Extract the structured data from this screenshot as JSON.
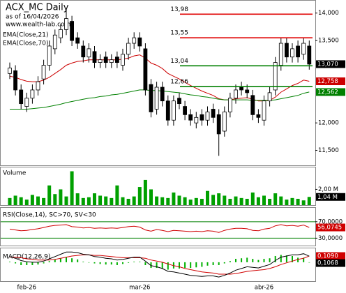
{
  "chart_data": [
    {
      "type": "candlestick",
      "title": "ACX_MC Daily",
      "subtitle": "as of 16/04/2026",
      "source": "www.wealth-lab.com",
      "categories": [
        null,
        null,
        null,
        "feb-26",
        null,
        null,
        null,
        null,
        null,
        null,
        null,
        null,
        null,
        null,
        null,
        null,
        null,
        null,
        null,
        null,
        null,
        null,
        null,
        "mar-26",
        null,
        null,
        null,
        null,
        null,
        null,
        null,
        null,
        null,
        null,
        null,
        null,
        null,
        null,
        null,
        null,
        null,
        null,
        null,
        null,
        null,
        "abr-26",
        null,
        null,
        null,
        null,
        null,
        null,
        null,
        null
      ],
      "open": [
        12.9,
        12.95,
        12.6,
        12.3,
        12.45,
        12.6,
        12.8,
        13.05,
        13.35,
        13.55,
        13.7,
        13.85,
        13.55,
        13.4,
        13.2,
        13.3,
        13.1,
        13.2,
        13.1,
        13.2,
        13.05,
        13.25,
        13.45,
        13.55,
        13.35,
        12.7,
        12.25,
        12.65,
        12.4,
        12.05,
        12.45,
        12.3,
        12.15,
        12.0,
        12.15,
        12.05,
        12.25,
        12.15,
        11.85,
        12.2,
        12.45,
        12.65,
        12.6,
        12.5,
        12.15,
        12.05,
        12.4,
        12.6,
        13.05,
        13.45,
        13.2,
        13.4,
        13.25,
        13.4
      ],
      "high": [
        13.1,
        13.05,
        12.7,
        12.55,
        12.7,
        12.85,
        13.15,
        13.5,
        13.7,
        13.8,
        14.08,
        13.95,
        13.65,
        13.5,
        13.45,
        13.4,
        13.25,
        13.3,
        13.25,
        13.3,
        13.35,
        13.55,
        13.65,
        13.65,
        13.45,
        12.8,
        12.75,
        12.75,
        12.5,
        12.5,
        12.55,
        12.4,
        12.25,
        12.2,
        12.25,
        12.3,
        12.35,
        12.25,
        12.3,
        12.55,
        12.7,
        12.75,
        12.7,
        12.6,
        12.25,
        12.5,
        12.65,
        13.2,
        13.55,
        13.55,
        13.45,
        13.5,
        13.55,
        13.5
      ],
      "low": [
        12.8,
        12.5,
        12.25,
        12.2,
        12.35,
        12.5,
        12.7,
        12.95,
        13.25,
        13.45,
        13.6,
        13.4,
        13.35,
        13.1,
        13.1,
        13.0,
        13.0,
        13.0,
        13.0,
        13.0,
        12.95,
        13.15,
        13.35,
        13.3,
        12.5,
        12.1,
        12.15,
        12.3,
        11.95,
        11.95,
        12.25,
        12.05,
        11.95,
        11.9,
        11.95,
        11.95,
        12.0,
        11.4,
        11.75,
        12.1,
        12.35,
        12.5,
        12.45,
        12.05,
        12.0,
        11.95,
        12.3,
        12.5,
        12.95,
        13.1,
        13.1,
        13.1,
        13.15,
        12.97
      ],
      "close": [
        13.0,
        12.6,
        12.35,
        12.45,
        12.6,
        12.75,
        13.05,
        13.4,
        13.6,
        13.7,
        13.9,
        13.5,
        13.45,
        13.2,
        13.35,
        13.1,
        13.15,
        13.1,
        13.15,
        13.1,
        13.25,
        13.45,
        13.55,
        13.4,
        12.6,
        12.2,
        12.65,
        12.4,
        12.05,
        12.4,
        12.35,
        12.15,
        12.05,
        12.1,
        12.05,
        12.2,
        12.1,
        11.8,
        12.2,
        12.45,
        12.6,
        12.6,
        12.55,
        12.15,
        12.1,
        12.4,
        12.55,
        13.1,
        13.45,
        13.2,
        13.35,
        13.2,
        13.45,
        13.07
      ],
      "close_label": "13,070",
      "close_color": "#000000",
      "up_color": "#ffffff",
      "down_color": "#000000",
      "ylim": [
        11.24,
        14.2
      ],
      "yticks": [
        {
          "value": 14,
          "label": "14,000"
        },
        {
          "value": 13.5,
          "label": "13,500"
        },
        {
          "value": 12,
          "label": "12,000"
        },
        {
          "value": 11.5,
          "label": "11,500"
        }
      ],
      "levels": [
        {
          "value": 13.98,
          "label": "13,98",
          "color": "#e00000"
        },
        {
          "value": 13.55,
          "label": "13,55",
          "color": "#e00000"
        },
        {
          "value": 13.04,
          "label": "13,04",
          "color": "#008000"
        },
        {
          "value": 12.66,
          "label": "12,66",
          "color": "#008000"
        }
      ],
      "series": [
        {
          "name": "EMA(Close,21)",
          "color": "#cc0000",
          "last_label": "12,758",
          "values": [
            12.85,
            12.83,
            12.79,
            12.76,
            12.75,
            12.75,
            12.78,
            12.83,
            12.9,
            12.97,
            13.05,
            13.09,
            13.12,
            13.13,
            13.15,
            13.15,
            13.15,
            13.15,
            13.15,
            13.15,
            13.16,
            13.18,
            13.22,
            13.24,
            13.18,
            13.09,
            13.05,
            12.99,
            12.9,
            12.85,
            12.8,
            12.74,
            12.68,
            12.63,
            12.58,
            12.54,
            12.5,
            12.44,
            12.42,
            12.42,
            12.44,
            12.45,
            12.46,
            12.43,
            12.4,
            12.4,
            12.41,
            12.47,
            12.56,
            12.62,
            12.68,
            12.72,
            12.78,
            12.758
          ]
        },
        {
          "name": "EMA(Close,70)",
          "color": "#008000",
          "last_label": "12,562",
          "values": [
            12.25,
            12.25,
            12.25,
            12.25,
            12.26,
            12.27,
            12.28,
            12.3,
            12.32,
            12.34,
            12.37,
            12.39,
            12.41,
            12.43,
            12.45,
            12.46,
            12.48,
            12.49,
            12.51,
            12.52,
            12.54,
            12.56,
            12.58,
            12.6,
            12.6,
            12.59,
            12.59,
            12.58,
            12.57,
            12.56,
            12.55,
            12.53,
            12.51,
            12.5,
            12.48,
            12.47,
            12.45,
            12.43,
            12.42,
            12.42,
            12.42,
            12.42,
            12.42,
            12.41,
            12.41,
            12.41,
            12.41,
            12.42,
            12.44,
            12.46,
            12.48,
            12.5,
            12.54,
            12.562
          ]
        }
      ]
    },
    {
      "type": "bar",
      "title": "Volume",
      "color": "#00a000",
      "last_label": "1,04 M",
      "last_color": "#000000",
      "values": [
        0.9,
        1.2,
        1.0,
        0.7,
        1.3,
        1.1,
        0.9,
        2.5,
        1.4,
        2.0,
        1.1,
        4.3,
        1.5,
        0.9,
        1.0,
        1.5,
        1.2,
        1.1,
        0.9,
        2.5,
        1.0,
        0.8,
        1.1,
        2.3,
        3.2,
        2.0,
        1.1,
        1.0,
        0.9,
        1.6,
        1.2,
        1.0,
        0.7,
        0.9,
        0.8,
        1.8,
        1.3,
        1.5,
        1.2,
        0.8,
        1.1,
        0.9,
        0.8,
        1.6,
        1.0,
        1.2,
        0.8,
        1.5,
        1.1,
        0.7,
        0.9,
        0.8,
        0.6,
        1.04
      ],
      "ylim": [
        0,
        4.7
      ],
      "yticks": [
        {
          "value": 2,
          "label": "2,00 M"
        }
      ]
    },
    {
      "type": "line",
      "title": "RSI(Close,14), SC>70, SV<30",
      "ylim": [
        12,
        102
      ],
      "yticks": [
        {
          "value": 70,
          "label": "70,0000"
        },
        {
          "value": 30,
          "label": "30,0000"
        }
      ],
      "grid": true,
      "grid_color": "#008000",
      "series": [
        {
          "color": "#d00000",
          "last_label": "56,0745",
          "values": [
            52,
            50,
            48,
            49,
            51,
            53,
            56,
            59,
            61,
            62,
            63,
            58,
            57,
            55,
            56,
            54,
            55,
            54,
            55,
            54,
            56,
            58,
            59,
            57,
            50,
            47,
            51,
            49,
            46,
            49,
            48,
            47,
            46,
            47,
            46,
            48,
            47,
            44,
            49,
            52,
            54,
            54,
            53,
            49,
            48,
            52,
            54,
            60,
            63,
            60,
            61,
            59,
            62,
            56.0745
          ]
        }
      ]
    },
    {
      "type": "line",
      "title": "MACD(12,26,9)",
      "ylim": [
        -0.32,
        0.22
      ],
      "histogram_color": "#00b000",
      "histogram": [
        0.01,
        -0.02,
        -0.05,
        -0.05,
        -0.05,
        -0.04,
        -0.02,
        0.02,
        0.05,
        0.07,
        0.09,
        0.07,
        0.05,
        0.01,
        0.0,
        -0.02,
        -0.03,
        -0.04,
        -0.04,
        -0.05,
        -0.03,
        -0.01,
        0.01,
        0.01,
        -0.05,
        -0.1,
        -0.1,
        -0.11,
        -0.13,
        -0.11,
        -0.11,
        -0.1,
        -0.1,
        -0.09,
        -0.08,
        -0.06,
        -0.05,
        -0.05,
        -0.02,
        0.02,
        0.06,
        0.07,
        0.08,
        0.06,
        0.04,
        0.06,
        0.07,
        0.11,
        0.13,
        0.12,
        0.11,
        0.08,
        0.08,
        -0.0022
      ],
      "series": [
        {
          "color": "#d00000",
          "last_label": "0,1090",
          "values": [
            0.09,
            0.09,
            0.08,
            0.06,
            0.05,
            0.04,
            0.04,
            0.04,
            0.05,
            0.07,
            0.09,
            0.11,
            0.12,
            0.13,
            0.13,
            0.12,
            0.12,
            0.11,
            0.1,
            0.09,
            0.08,
            0.08,
            0.08,
            0.08,
            0.07,
            0.04,
            0.02,
            0.0,
            -0.03,
            -0.06,
            -0.08,
            -0.11,
            -0.13,
            -0.15,
            -0.17,
            -0.18,
            -0.19,
            -0.21,
            -0.21,
            -0.21,
            -0.2,
            -0.18,
            -0.16,
            -0.15,
            -0.14,
            -0.13,
            -0.11,
            -0.08,
            -0.04,
            -0.01,
            0.02,
            0.05,
            0.07,
            0.109
          ]
        },
        {
          "color": "#000000",
          "last_label": "0,1068",
          "values": [
            0.1,
            0.07,
            0.03,
            0.01,
            0.0,
            0.0,
            0.02,
            0.06,
            0.1,
            0.14,
            0.18,
            0.18,
            0.17,
            0.14,
            0.13,
            0.1,
            0.09,
            0.07,
            0.06,
            0.04,
            0.05,
            0.07,
            0.09,
            0.09,
            0.02,
            -0.06,
            -0.08,
            -0.11,
            -0.16,
            -0.17,
            -0.19,
            -0.21,
            -0.23,
            -0.24,
            -0.25,
            -0.24,
            -0.24,
            -0.26,
            -0.23,
            -0.19,
            -0.14,
            -0.11,
            -0.08,
            -0.09,
            -0.1,
            -0.07,
            -0.04,
            0.03,
            0.09,
            0.11,
            0.13,
            0.13,
            0.15,
            0.1068
          ]
        }
      ]
    }
  ]
}
